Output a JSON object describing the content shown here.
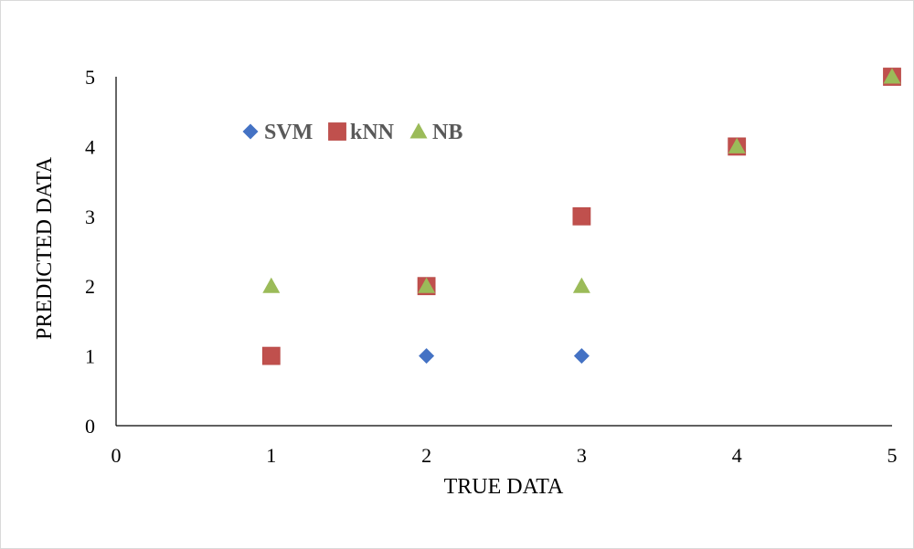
{
  "chart_data": {
    "type": "scatter",
    "title": "",
    "xlabel": "TRUE DATA",
    "ylabel": "PREDICTED DATA",
    "xlim": [
      0,
      5
    ],
    "ylim": [
      0,
      5
    ],
    "xticks": [
      0,
      1,
      2,
      3,
      4,
      5
    ],
    "yticks": [
      0,
      1,
      2,
      3,
      4,
      5
    ],
    "grid": false,
    "legend_position": "top-left",
    "series": [
      {
        "name": "SVM",
        "marker": "diamond",
        "color": "#4472c4",
        "x": [
          1,
          2,
          3,
          4,
          5
        ],
        "y": [
          1,
          1,
          1,
          4,
          5
        ]
      },
      {
        "name": "kNN",
        "marker": "square",
        "color": "#c0504d",
        "x": [
          1,
          2,
          3,
          4,
          5
        ],
        "y": [
          1,
          2,
          3,
          4,
          5
        ]
      },
      {
        "name": "NB",
        "marker": "triangle",
        "color": "#9bbb59",
        "x": [
          1,
          2,
          3,
          4,
          5
        ],
        "y": [
          2,
          2,
          2,
          4,
          5
        ]
      }
    ]
  }
}
